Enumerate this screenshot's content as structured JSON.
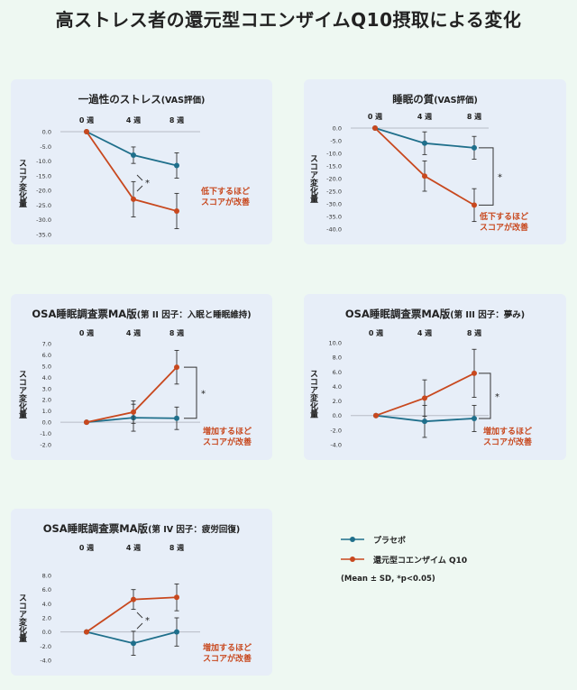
{
  "title": "高ストレス者の還元型コエンザイムQ10摂取による変化",
  "colors": {
    "placebo": "#1f6f8b",
    "coq10": "#c8481e",
    "zero_line": "#b7bcc6"
  },
  "legend": {
    "placebo": "プラセボ",
    "coq10": "還元型コエンザイム Q10",
    "note": "(Mean ± SD, *p<0.05)"
  },
  "chart_data": [
    {
      "type": "line",
      "title": "一過性のストレス",
      "subtitle": "(VAS評価)",
      "ylabel": "スコア変化量",
      "categories": [
        "0 週",
        "4 週",
        "8 週"
      ],
      "ylim": [
        -35,
        0
      ],
      "yticks": [
        "0.0",
        "-5.0",
        "-10.0",
        "-15.0",
        "-20.0",
        "-25.0",
        "-30.0",
        "-35.0"
      ],
      "series": [
        {
          "name": "プラセボ",
          "values": [
            0,
            -8,
            -11.5
          ],
          "errors": [
            0,
            2.8,
            4.3
          ]
        },
        {
          "name": "還元型コエンザイム Q10",
          "values": [
            0,
            -23,
            -27
          ],
          "errors": [
            0,
            6,
            6
          ]
        }
      ],
      "significance": {
        "type": "point",
        "label": "*"
      },
      "annotation": [
        "低下するほど",
        "スコアが改善"
      ]
    },
    {
      "type": "line",
      "title": "睡眠の質",
      "subtitle": "(VAS評価)",
      "ylabel": "スコア変化量",
      "categories": [
        "0 週",
        "4 週",
        "8 週"
      ],
      "ylim": [
        -40,
        0
      ],
      "yticks": [
        "0.0",
        "-5.0",
        "-10.0",
        "-15.0",
        "-20.0",
        "-25.0",
        "-30.0",
        "-35.0",
        "-40.0"
      ],
      "series": [
        {
          "name": "プラセボ",
          "values": [
            0,
            -6,
            -7.8
          ],
          "errors": [
            0,
            4.5,
            4.5
          ]
        },
        {
          "name": "還元型コエンザイム Q10",
          "values": [
            0,
            -19,
            -30.5
          ],
          "errors": [
            0,
            6,
            6.5
          ]
        }
      ],
      "significance": {
        "type": "bracket",
        "label": "*"
      },
      "annotation": [
        "低下するほど",
        "スコアが改善"
      ]
    },
    {
      "type": "line",
      "title": "OSA睡眠調査票MA版",
      "subtitle": "(第 II 因子：入眠と睡眠維持)",
      "ylabel": "スコア変化量",
      "categories": [
        "0 週",
        "4 週",
        "8 週"
      ],
      "ylim": [
        -2,
        7
      ],
      "yticks": [
        "7.0",
        "6.0",
        "5.0",
        "4.0",
        "3.0",
        "2.0",
        "1.0",
        "0.0",
        "-1.0",
        "-2.0"
      ],
      "series": [
        {
          "name": "プラセボ",
          "values": [
            0,
            0.4,
            0.35
          ],
          "errors": [
            0,
            1.2,
            1.0
          ]
        },
        {
          "name": "還元型コエンザイム Q10",
          "values": [
            0,
            0.9,
            4.9
          ],
          "errors": [
            0,
            1.0,
            1.5
          ]
        }
      ],
      "significance": {
        "type": "bracket",
        "label": "*"
      },
      "annotation": [
        "増加するほど",
        "スコアが改善"
      ]
    },
    {
      "type": "line",
      "title": "OSA睡眠調査票MA版",
      "subtitle": "(第 III 因子：夢み)",
      "ylabel": "スコア変化量",
      "categories": [
        "0 週",
        "4 週",
        "8 週"
      ],
      "ylim": [
        -4,
        10
      ],
      "yticks": [
        "10.0",
        "8.0",
        "6.0",
        "4.0",
        "2.0",
        "0.0",
        "-2.0",
        "-4.0"
      ],
      "series": [
        {
          "name": "プラセボ",
          "values": [
            0,
            -0.8,
            -0.4
          ],
          "errors": [
            0,
            2.2,
            1.8
          ]
        },
        {
          "name": "還元型コエンザイム Q10",
          "values": [
            0,
            2.4,
            5.8
          ],
          "errors": [
            0,
            2.5,
            3.3
          ]
        }
      ],
      "significance": {
        "type": "bracket",
        "label": "*"
      },
      "annotation": [
        "増加するほど",
        "スコアが改善"
      ]
    },
    {
      "type": "line",
      "title": "OSA睡眠調査票MA版",
      "subtitle": "(第 IV 因子：疲労回復)",
      "ylabel": "スコア変化量",
      "categories": [
        "0 週",
        "4 週",
        "8 週"
      ],
      "ylim": [
        -4,
        8
      ],
      "yticks": [
        "8.0",
        "6.0",
        "4.0",
        "2.0",
        "0.0",
        "-2.0",
        "-4.0"
      ],
      "series": [
        {
          "name": "プラセボ",
          "values": [
            0,
            -1.6,
            0
          ],
          "errors": [
            0,
            1.7,
            2.0
          ]
        },
        {
          "name": "還元型コエンザイム Q10",
          "values": [
            0,
            4.6,
            4.9
          ],
          "errors": [
            0,
            1.4,
            1.9
          ]
        }
      ],
      "significance": {
        "type": "point",
        "label": "*"
      },
      "annotation": [
        "増加するほど",
        "スコアが改善"
      ]
    }
  ]
}
